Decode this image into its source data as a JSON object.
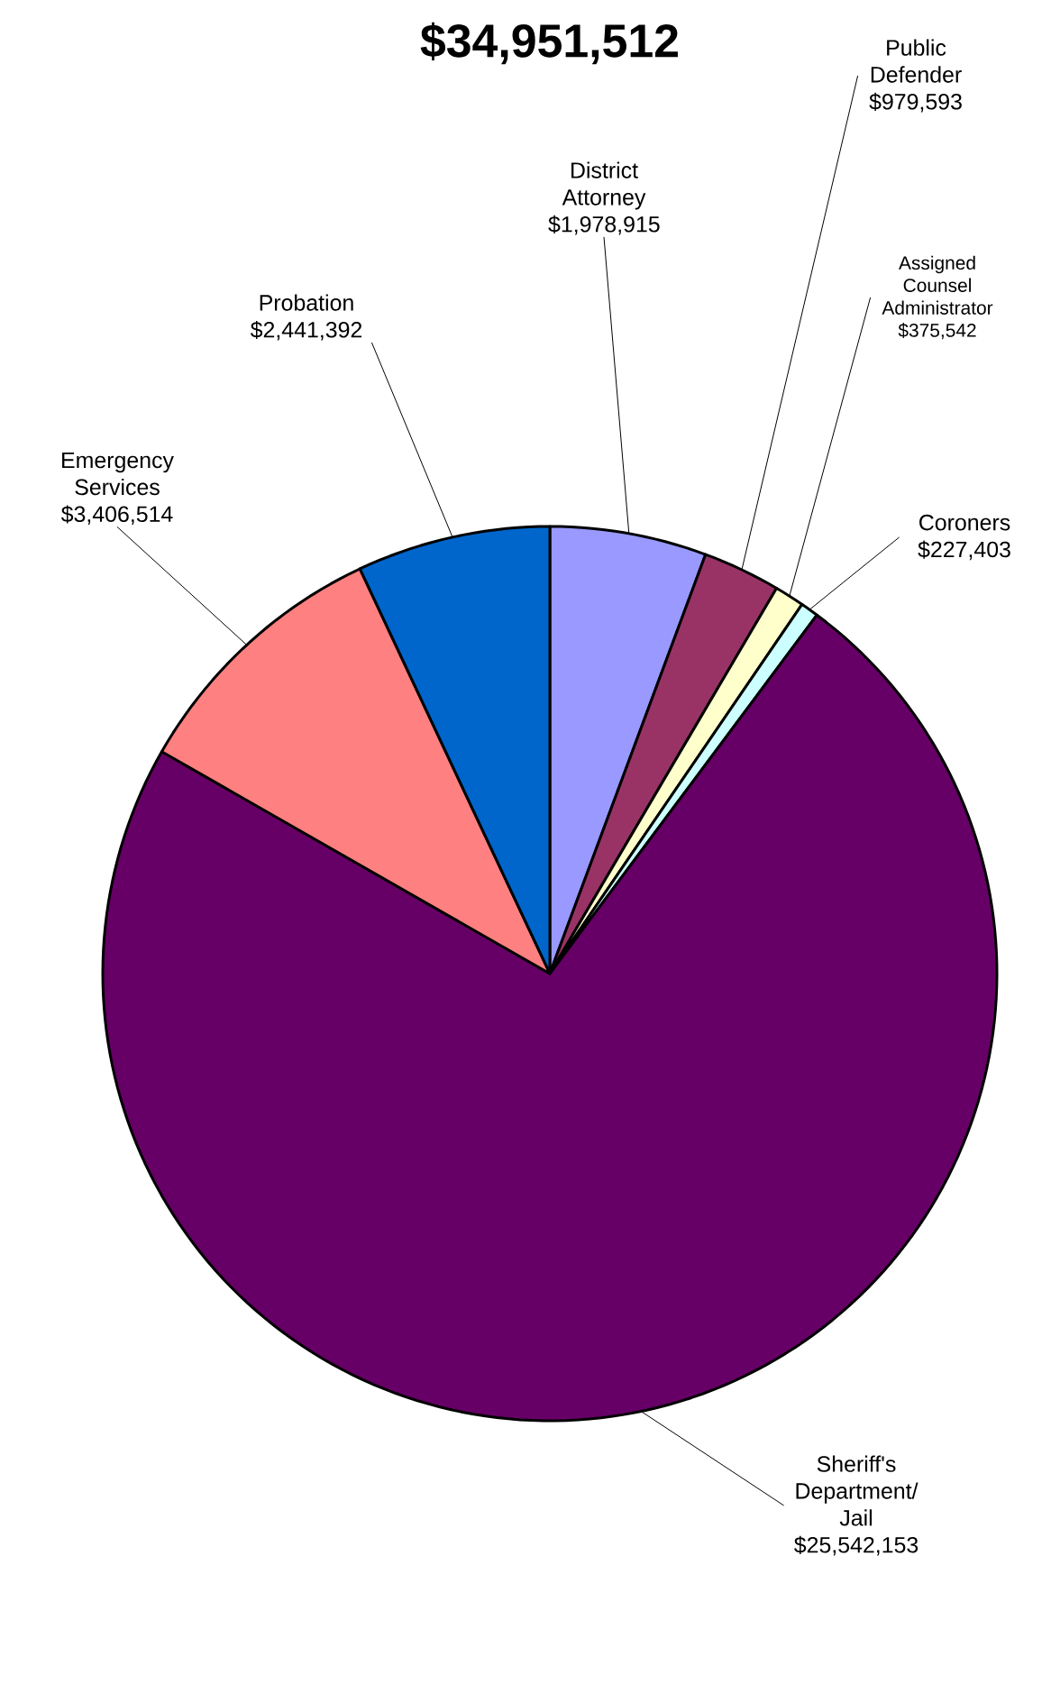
{
  "chart_data": {
    "type": "pie",
    "title": "$34,951,512",
    "categories": [
      "District Attorney",
      "Public Defender",
      "Assigned Counsel Administrator",
      "Coroners",
      "Sheriff's Department/ Jail",
      "Emergency Services",
      "Probation"
    ],
    "values": [
      1978915,
      979593,
      375542,
      227403,
      25542153,
      3406514,
      2441392
    ],
    "value_labels": [
      "$1,978,915",
      "$979,593",
      "$375,542",
      "$227,403",
      "$25,542,153",
      "$3,406,514",
      "$2,441,392"
    ],
    "colors": [
      "#9999ff",
      "#993366",
      "#ffffcc",
      "#ccffff",
      "#660066",
      "#ff8080",
      "#0066cc"
    ]
  }
}
